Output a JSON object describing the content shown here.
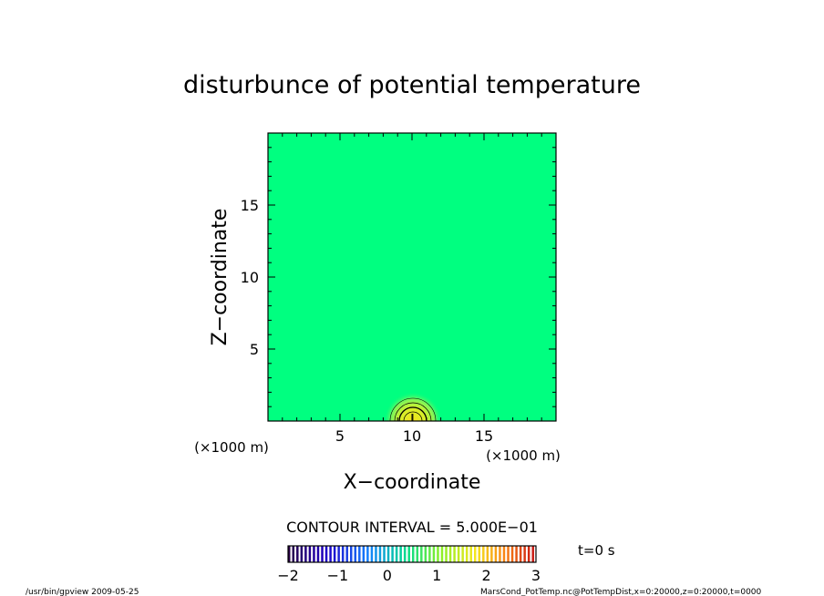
{
  "chart_data": {
    "type": "heatmap",
    "title": "disturbunce of potential temperature",
    "xlabel": "X−coordinate",
    "ylabel": "Z−coordinate",
    "x_unit": "(×1000 m)",
    "y_unit": "(×1000 m)",
    "xlim": [
      0,
      20
    ],
    "ylim": [
      0,
      20
    ],
    "x_ticks": [
      5,
      10,
      15
    ],
    "y_ticks": [
      5,
      10,
      15
    ],
    "x_tick_labels": [
      "5",
      "10",
      "15"
    ],
    "y_tick_labels": [
      "5",
      "10",
      "15"
    ],
    "background_value": 0,
    "feature": {
      "type": "warm_bubble",
      "center_x": 10,
      "center_z": 0,
      "max_value": 2.0,
      "radius": 2
    },
    "contour_interval_label": "CONTOUR INTERVAL = 5.000E−01",
    "contour_interval": 0.5,
    "colorbar": {
      "min": -2,
      "max": 3,
      "ticks": [
        -2,
        -1,
        0,
        1,
        2,
        3
      ],
      "tick_labels": [
        "−2",
        "−1",
        "0",
        "1",
        "2",
        "3"
      ]
    },
    "time_label": "t=0 s",
    "grid": false
  },
  "footer": {
    "left": "/usr/bin/gpview   2009-05-25",
    "right": "MarsCond_PotTemp.nc@PotTempDist,x=0:20000,z=0:20000,t=0000"
  }
}
